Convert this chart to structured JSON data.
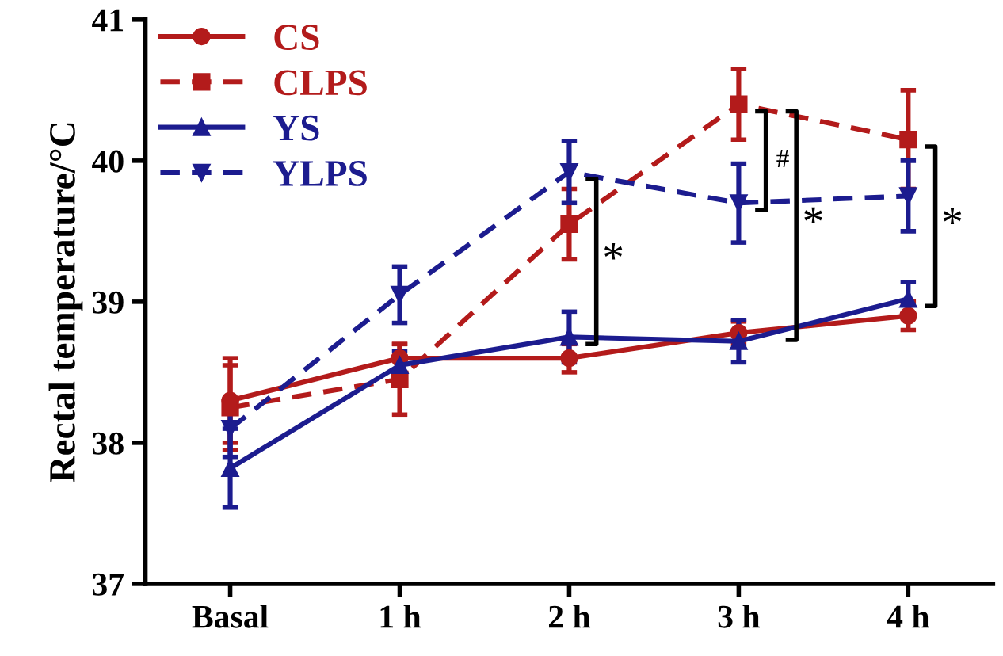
{
  "chart_data": {
    "type": "line",
    "ylabel": "Rectal temperature/°C",
    "categories": [
      "Basal",
      "1 h",
      "2 h",
      "3 h",
      "4 h"
    ],
    "ylim": [
      37,
      41
    ],
    "yticks": [
      37,
      38,
      39,
      40,
      41
    ],
    "grid": false,
    "legend": "top left",
    "series": [
      {
        "name": "CS",
        "color": "#b31b1b",
        "marker": "circle",
        "line_style": "solid",
        "values": [
          38.3,
          38.6,
          38.6,
          38.78,
          38.9
        ],
        "errors": [
          0.3,
          0.1,
          0.1,
          0.08,
          0.1
        ]
      },
      {
        "name": "CLPS",
        "color": "#b31b1b",
        "marker": "square",
        "line_style": "dashed",
        "values": [
          38.25,
          38.45,
          39.55,
          40.4,
          40.15
        ],
        "errors": [
          0.3,
          0.25,
          0.25,
          0.25,
          0.35
        ]
      },
      {
        "name": "YS",
        "color": "#1c1c8f",
        "marker": "triangle",
        "line_style": "solid",
        "values": [
          37.82,
          38.55,
          38.75,
          38.72,
          39.02
        ],
        "errors": [
          0.28,
          0.1,
          0.18,
          0.15,
          0.12
        ]
      },
      {
        "name": "YLPS",
        "color": "#1c1c8f",
        "marker": "triangle_down",
        "line_style": "dashed",
        "values": [
          38.1,
          39.05,
          39.92,
          39.7,
          39.75
        ],
        "errors": [
          0.2,
          0.2,
          0.22,
          0.28,
          0.25
        ]
      }
    ],
    "annotations": [
      {
        "text": "*",
        "x": "2 h",
        "y": 38.75
      },
      {
        "text": "#",
        "x": "3 h",
        "y": 39.7
      },
      {
        "text": "*",
        "x": "3 h",
        "y": 38.78
      },
      {
        "text": "*",
        "x": "4 h",
        "y": 39.02
      }
    ]
  }
}
